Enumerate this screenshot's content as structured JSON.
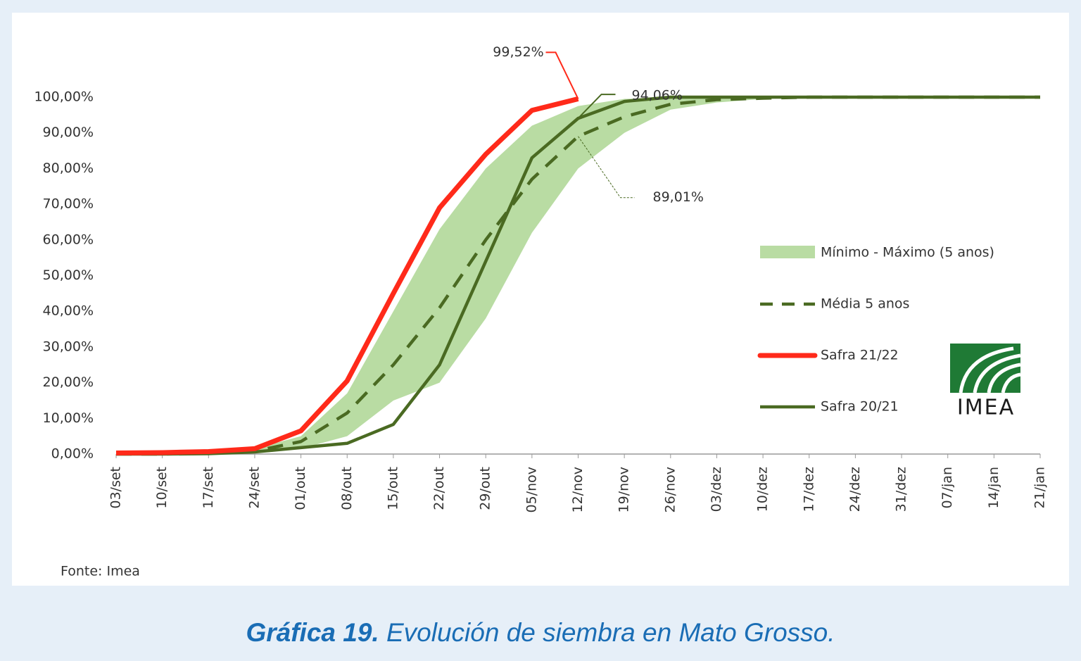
{
  "chart_data": {
    "type": "line",
    "categories": [
      "03/set",
      "10/set",
      "17/set",
      "24/set",
      "01/out",
      "08/out",
      "15/out",
      "22/out",
      "29/out",
      "05/nov",
      "12/nov",
      "19/nov",
      "26/nov",
      "03/dez",
      "10/dez",
      "17/dez",
      "24/dez",
      "31/dez",
      "07/jan",
      "14/jan",
      "21/jan"
    ],
    "ylim": [
      0,
      100
    ],
    "yticks": [
      {
        "value": 0,
        "label": "0,00%"
      },
      {
        "value": 10,
        "label": "10,00%"
      },
      {
        "value": 20,
        "label": "20,00%"
      },
      {
        "value": 30,
        "label": "30,00%"
      },
      {
        "value": 40,
        "label": "40,00%"
      },
      {
        "value": 50,
        "label": "50,00%"
      },
      {
        "value": 60,
        "label": "60,00%"
      },
      {
        "value": 70,
        "label": "70,00%"
      },
      {
        "value": 80,
        "label": "80,00%"
      },
      {
        "value": 90,
        "label": "90,00%"
      },
      {
        "value": 100,
        "label": "100,00%"
      }
    ],
    "band": {
      "name": "Mínimo - Máximo (5 anos)",
      "color": "#b9dca3",
      "lower": [
        0,
        0,
        0,
        0.5,
        1.5,
        5,
        15,
        20,
        38,
        62,
        80,
        90,
        96.5,
        98.5,
        99.5,
        99.8,
        100,
        100,
        100,
        100,
        100
      ],
      "upper": [
        0.3,
        0.4,
        0.6,
        1.5,
        5,
        17,
        40,
        63,
        80,
        92,
        97.5,
        99.5,
        100,
        100,
        100,
        100,
        100,
        100,
        100,
        100,
        100
      ]
    },
    "series": [
      {
        "name": "Média 5 anos",
        "color": "#4a6a22",
        "dashed": true,
        "values": [
          0,
          0,
          0.2,
          0.8,
          3.5,
          11.5,
          25,
          41,
          60,
          77,
          89.01,
          94.5,
          98,
          99.3,
          99.7,
          100,
          100,
          100,
          100,
          100,
          100
        ],
        "value_labels": [
          null,
          null,
          null,
          null,
          null,
          null,
          null,
          null,
          null,
          null,
          "89,01%",
          null,
          null,
          null,
          null,
          null,
          null,
          null,
          null,
          null,
          null
        ]
      },
      {
        "name": "Safra 21/22",
        "color": "#ff2a1a",
        "width": 7,
        "values": [
          0.3,
          0.4,
          0.7,
          1.5,
          6.5,
          20.5,
          45,
          69,
          84,
          96.3,
          99.52,
          null,
          null,
          null,
          null,
          null,
          null,
          null,
          null,
          null,
          null
        ],
        "value_labels": [
          null,
          null,
          null,
          null,
          null,
          null,
          null,
          null,
          null,
          null,
          "99,52%",
          null,
          null,
          null,
          null,
          null,
          null,
          null,
          null,
          null,
          null
        ]
      },
      {
        "name": "Safra 20/21",
        "color": "#4a6a22",
        "values": [
          0,
          0,
          0.1,
          0.6,
          1.8,
          3,
          8.3,
          25,
          54,
          83,
          94.06,
          98.8,
          100,
          100,
          100,
          100,
          100,
          100,
          100,
          100,
          100
        ],
        "value_labels": [
          null,
          null,
          null,
          null,
          null,
          null,
          null,
          null,
          null,
          null,
          "94,06%",
          null,
          null,
          null,
          null,
          null,
          null,
          null,
          null,
          null,
          null
        ]
      }
    ],
    "logo": "IMEA",
    "source": "Fonte: Imea"
  },
  "caption": {
    "label": "Gráfica 19.",
    "text": " Evolución de siembra en Mato Grosso."
  }
}
